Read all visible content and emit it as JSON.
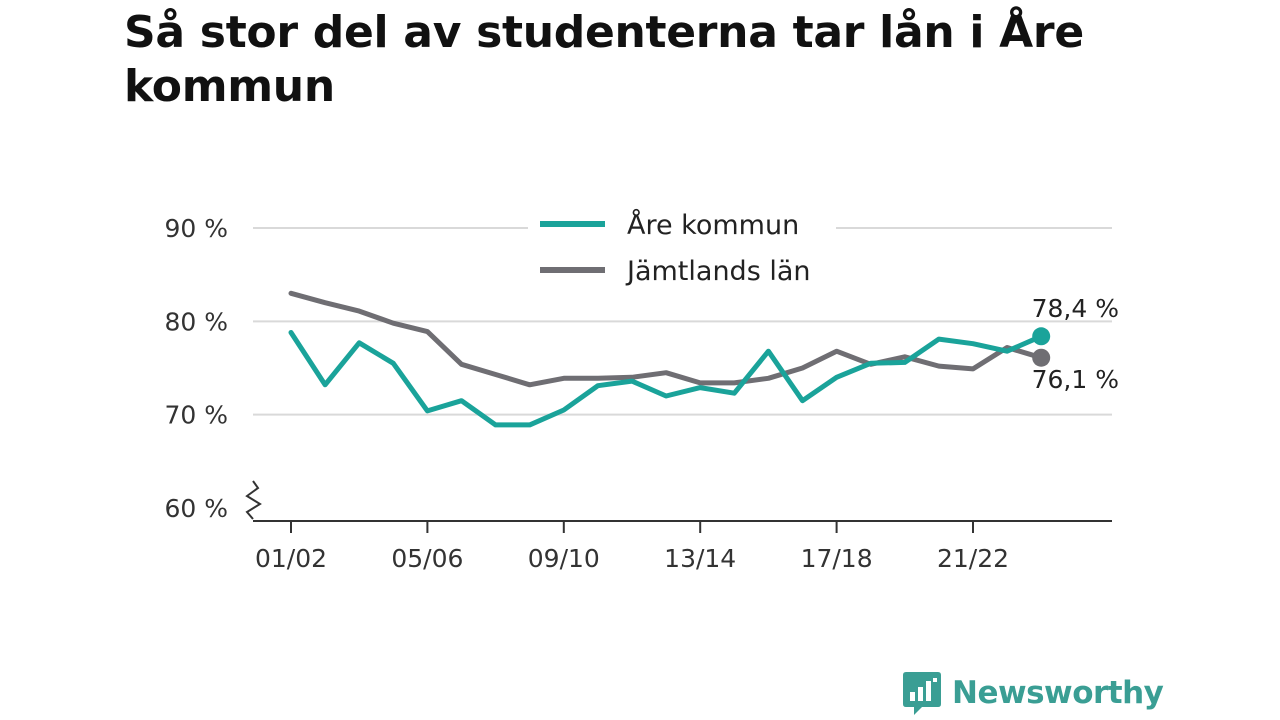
{
  "title": "Så stor del av studenterna tar lån i Åre kommun",
  "brand": {
    "name": "Newsworthy",
    "color": "#3a9e94",
    "icon": "bar-chart-speech-bubble-icon"
  },
  "colors": {
    "are": "#1aa39a",
    "jamtland": "#6f6e73",
    "grid": "#d9d9d9",
    "axis": "#333333"
  },
  "chart_data": {
    "type": "line",
    "title": "Så stor del av studenterna tar lån i Åre kommun",
    "xlabel": "",
    "ylabel": "",
    "ylim": [
      60,
      90
    ],
    "yticks": [
      60,
      70,
      80,
      90
    ],
    "ytick_labels": [
      "60 %",
      "70 %",
      "80 %",
      "90 %"
    ],
    "y_axis_break": true,
    "grid": true,
    "legend_position": "top-center",
    "x": [
      "01/02",
      "02/03",
      "03/04",
      "04/05",
      "05/06",
      "06/07",
      "07/08",
      "08/09",
      "09/10",
      "10/11",
      "11/12",
      "12/13",
      "13/14",
      "14/15",
      "15/16",
      "16/17",
      "17/18",
      "18/19",
      "19/20",
      "20/21",
      "21/22",
      "22/23",
      "23/24"
    ],
    "xtick_labels": [
      "01/02",
      "05/06",
      "09/10",
      "13/14",
      "17/18",
      "21/22"
    ],
    "series": [
      {
        "name": "Åre kommun",
        "color": "#1aa39a",
        "values": [
          78.8,
          73.2,
          77.7,
          75.5,
          70.4,
          71.5,
          68.9,
          68.9,
          70.5,
          73.1,
          73.6,
          72.0,
          72.9,
          72.3,
          76.8,
          71.5,
          74.0,
          75.5,
          75.6,
          78.1,
          77.6,
          76.8,
          78.4
        ],
        "end_label": "78,4 %"
      },
      {
        "name": "Jämtlands län",
        "color": "#6f6e73",
        "values": [
          83.0,
          82.0,
          81.1,
          79.8,
          78.9,
          75.4,
          74.3,
          73.2,
          73.9,
          73.9,
          74.0,
          74.5,
          73.4,
          73.4,
          73.9,
          75.0,
          76.8,
          75.4,
          76.2,
          75.2,
          74.9,
          77.2,
          76.1
        ],
        "end_label": "76,1 %"
      }
    ]
  }
}
